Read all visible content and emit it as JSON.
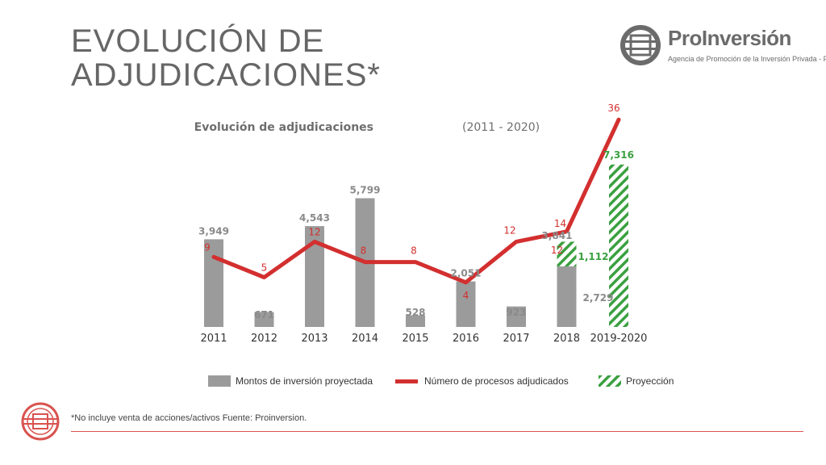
{
  "page": {
    "title_line1": "EVOLUCIÓN DE",
    "title_line2": "ADJUDICACIONES*",
    "brand_name": "ProInversión",
    "brand_subtitle": "Agencia de Promoción de la Inversión Privada - Perú",
    "footnote": "*No incluye venta de acciones/activos  Fuente: Proinversion.",
    "logo_icon": "proinversion-logo-icon",
    "seal_icon": "proinversion-seal-icon"
  },
  "colors": {
    "bar": "#9b9b9b",
    "line": "#d32f2f",
    "projection": "#3aa040",
    "title": "#666666",
    "label_gray": "#8a8a8a"
  },
  "chart_data": {
    "type": "bar",
    "title": "Evolución de adjudicaciones",
    "title_period": "(2011 - 2020)",
    "categories": [
      "2011",
      "2012",
      "2013",
      "2014",
      "2015",
      "2016",
      "2017",
      "2018",
      "2019-2020"
    ],
    "series": [
      {
        "name": "Montos de inversión proyectada",
        "kind": "bar",
        "values": [
          3949,
          671,
          4543,
          5799,
          528,
          2051,
          923,
          2729,
          null
        ],
        "labels": [
          "3,949",
          "671",
          "4,543",
          "5,799",
          "528",
          "2,051",
          "923",
          "2,729",
          ""
        ]
      },
      {
        "name": "Proyección",
        "kind": "bar-hatched",
        "values": [
          null,
          null,
          null,
          null,
          null,
          null,
          null,
          1112,
          7316
        ],
        "labels": [
          "",
          "",
          "",
          "",
          "",
          "",
          "",
          "1,112",
          "7,316"
        ]
      },
      {
        "name": "Número de procesos adjudicados",
        "kind": "line",
        "values": [
          9,
          5,
          12,
          8,
          8,
          4,
          12,
          14,
          36
        ],
        "labels": [
          "9",
          "5",
          "12",
          "8",
          "8",
          "4",
          "12",
          "14",
          "36"
        ]
      }
    ],
    "extra_labels": [
      {
        "category": "2018",
        "text": "3,841"
      },
      {
        "category": "2018",
        "text": "12"
      }
    ],
    "legend": [
      "Montos de inversión proyectada",
      "Número de procesos adjudicados",
      "Proyección"
    ],
    "legend_position": "bottom",
    "grid": false
  }
}
